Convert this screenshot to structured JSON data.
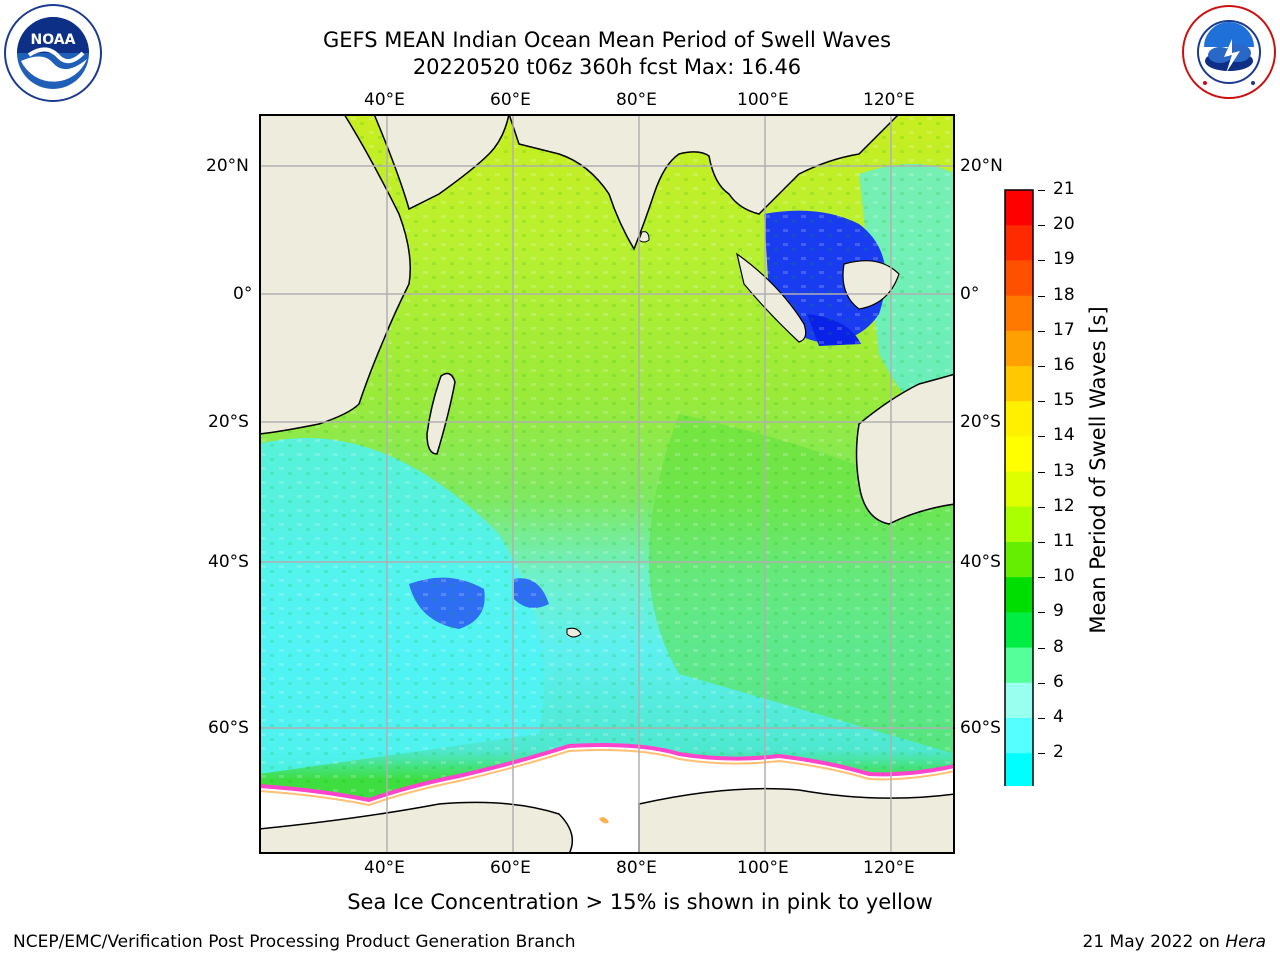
{
  "title_line1": "GEFS MEAN Indian Ocean Mean Period of Swell Waves",
  "title_line2": "20220520 t06z 360h fcst   Max: 16.46",
  "logos": {
    "left": "noaa-logo",
    "right": "national-weather-service-logo"
  },
  "map": {
    "lon_ticks": [
      "40°E",
      "60°E",
      "80°E",
      "100°E",
      "120°E"
    ],
    "lat_ticks_left": [
      "20°N",
      "0°",
      "20°S",
      "40°S",
      "60°S"
    ],
    "lat_ticks_right": [
      "20°N",
      "0°",
      "20°S",
      "40°S",
      "60°S"
    ],
    "grid": true,
    "land_color": "#eeecdc",
    "ice_color": "#ffffff"
  },
  "colorbar": {
    "label": "Mean Period of Swell Waves [s]",
    "ticks": [
      "21",
      "20",
      "19",
      "18",
      "17",
      "16",
      "15",
      "14",
      "13",
      "12",
      "11",
      "10",
      "9",
      "8",
      "6",
      "4",
      "2"
    ],
    "colors": [
      "#ff0000",
      "#ff2a00",
      "#ff5000",
      "#ff7800",
      "#ff9f00",
      "#ffc800",
      "#fff000",
      "#ffff00",
      "#ddff00",
      "#aaff00",
      "#66ee00",
      "#00dd00",
      "#00ee44",
      "#55ff99",
      "#99ffee",
      "#55ffff",
      "#00ffff",
      "#0088ff",
      "#0000ff"
    ]
  },
  "caption": "Sea Ice Concentration > 15% is shown in pink to yellow",
  "footer_left": "NCEP/EMC/Verification Post Processing Product Generation Branch",
  "footer_date": "21 May 2022 on ",
  "footer_host": "Hera"
}
